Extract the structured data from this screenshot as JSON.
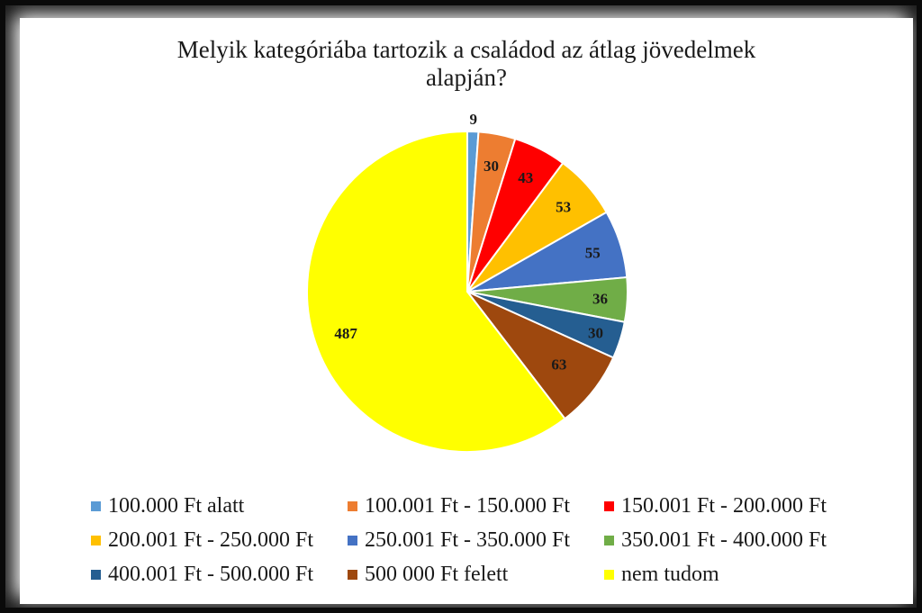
{
  "chart_data": {
    "type": "pie",
    "title": [
      "Melyik kategóriába tartozik a családod az átlag jövedelmek",
      "alapján?"
    ],
    "categories": [
      "100.000 Ft alatt",
      "100.001 Ft - 150.000 Ft",
      "150.001 Ft - 200.000 Ft",
      "200.001 Ft - 250.000 Ft",
      "250.001 Ft - 350.000 Ft",
      "350.001 Ft - 400.000 Ft",
      "400.001 Ft - 500.000 Ft",
      "500 000 Ft felett",
      "nem tudom"
    ],
    "values": [
      9,
      30,
      43,
      53,
      55,
      36,
      30,
      63,
      487
    ],
    "colors": [
      "#5B9BD5",
      "#ED7D31",
      "#FF0000",
      "#FFC000",
      "#4472C4",
      "#70AD47",
      "#255E91",
      "#9E480E",
      "#FFFF00"
    ],
    "data_labels": [
      "9",
      "30",
      "43",
      "53",
      "55",
      "36",
      "30",
      "63",
      "487"
    ],
    "legend_position": "bottom"
  }
}
